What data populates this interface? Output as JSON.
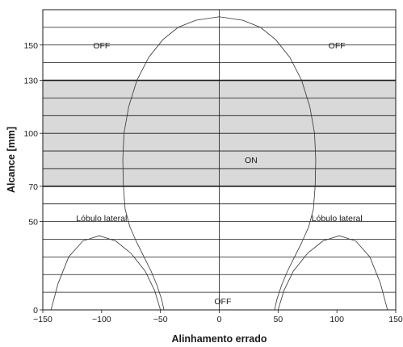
{
  "chart_data": {
    "type": "line",
    "xlabel": "Alinhamento errado",
    "ylabel": "Alcance [mm]",
    "xlim": [
      -150,
      150
    ],
    "ylim": [
      0,
      170
    ],
    "xticks": [
      -150,
      -100,
      -50,
      0,
      50,
      100,
      150
    ],
    "xtick_labels": [
      "−150",
      "−100",
      "−50",
      "0",
      "50",
      "100",
      "150"
    ],
    "yticks": [
      0,
      50,
      70,
      100,
      130,
      150
    ],
    "ytick_labels": [
      "0",
      "50",
      "70",
      "100",
      "130",
      "150"
    ],
    "grid": true,
    "horizontal_gridlines": [
      0,
      10,
      20,
      30,
      40,
      50,
      60,
      70,
      80,
      90,
      100,
      110,
      120,
      130,
      140,
      150,
      160,
      170
    ],
    "bold_gridlines": [
      70,
      130
    ],
    "vertical_gridlines": [
      0
    ],
    "shaded_band": {
      "y_from": 70,
      "y_to": 130,
      "color": "#d9d9d9"
    },
    "region_labels": [
      {
        "text": "OFF",
        "x": -100,
        "y": 150
      },
      {
        "text": "OFF",
        "x": 100,
        "y": 150
      },
      {
        "text": "ON",
        "x": 27,
        "y": 85
      },
      {
        "text": "Lóbulo lateral",
        "x": -100,
        "y": 52
      },
      {
        "text": "Lóbulo lateral",
        "x": 100,
        "y": 52
      },
      {
        "text": "OFF",
        "x": 3,
        "y": 5
      }
    ],
    "series": [
      {
        "points": [
          [
            -47,
            0
          ],
          [
            -49,
            6
          ],
          [
            -53,
            14
          ],
          [
            -58,
            22
          ],
          [
            -64,
            30
          ],
          [
            -70,
            38
          ],
          [
            -76,
            47
          ],
          [
            -80,
            57
          ],
          [
            -81.5,
            70
          ],
          [
            -82,
            85
          ],
          [
            -81,
            100
          ],
          [
            -77,
            115
          ],
          [
            -70,
            130
          ],
          [
            -60,
            143
          ],
          [
            -48,
            153
          ],
          [
            -35,
            160
          ],
          [
            -20,
            164
          ],
          [
            0,
            166
          ],
          [
            20,
            164
          ],
          [
            35,
            160
          ],
          [
            48,
            153
          ],
          [
            60,
            143
          ],
          [
            70,
            130
          ],
          [
            77,
            115
          ],
          [
            81,
            100
          ],
          [
            82,
            85
          ],
          [
            81.5,
            70
          ],
          [
            80,
            57
          ],
          [
            76,
            47
          ],
          [
            70,
            38
          ],
          [
            64,
            30
          ],
          [
            58,
            22
          ],
          [
            53,
            14
          ],
          [
            49,
            6
          ],
          [
            47,
            0
          ]
        ]
      },
      {
        "points": [
          [
            -143,
            0
          ],
          [
            -137,
            15
          ],
          [
            -128,
            30
          ],
          [
            -116,
            39
          ],
          [
            -102,
            42
          ],
          [
            -88,
            39
          ],
          [
            -75,
            32
          ],
          [
            -63,
            22
          ],
          [
            -55,
            11
          ],
          [
            -50,
            0
          ]
        ]
      },
      {
        "points": [
          [
            50,
            0
          ],
          [
            55,
            11
          ],
          [
            63,
            22
          ],
          [
            75,
            32
          ],
          [
            88,
            39
          ],
          [
            102,
            42
          ],
          [
            116,
            39
          ],
          [
            128,
            30
          ],
          [
            137,
            15
          ],
          [
            143,
            0
          ]
        ]
      }
    ]
  }
}
